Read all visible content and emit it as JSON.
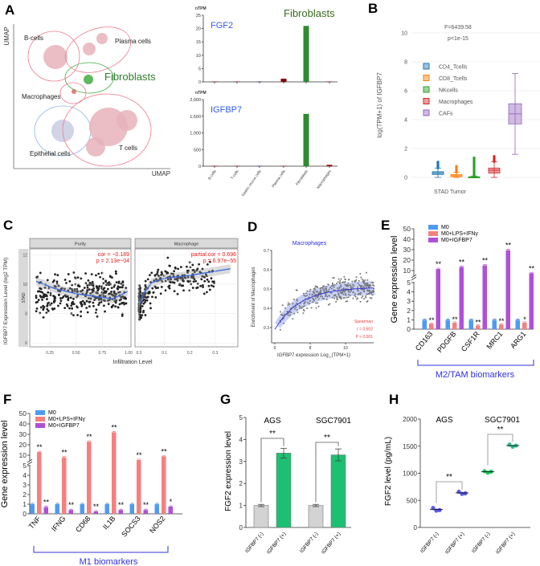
{
  "figure": {
    "panel_labels": [
      "A",
      "B",
      "C",
      "D",
      "E",
      "F",
      "G",
      "H"
    ]
  },
  "chart_data": [
    {
      "panel": "A",
      "type": "scatter",
      "xlabel": "UMAP",
      "ylabel": "UMAP",
      "clusters": [
        {
          "name": "B-cells",
          "color": "#f07a8a"
        },
        {
          "name": "Plasma cells",
          "color": "#f07a8a"
        },
        {
          "name": "Fibroblasts",
          "color": "#3fae3f"
        },
        {
          "name": "Macrophages",
          "color": "#f07a8a"
        },
        {
          "name": "Epithelial cells",
          "color": "#8ab4e8"
        },
        {
          "name": "T cells",
          "color": "#f07a8a"
        }
      ]
    },
    {
      "panel": "A",
      "type": "bar",
      "title": "FGF2",
      "unit": "nTPM",
      "annotation": "Fibroblasts",
      "categories": [
        "B-cells",
        "T-cells",
        "Gastric mucus cells",
        "Plasma cells",
        "Fibroblasts",
        "Macrophages"
      ],
      "values": [
        0,
        0,
        0,
        1.2,
        21,
        0
      ],
      "colors": [
        "#8b0000",
        "#8b0000",
        "#1a237e",
        "#8b0000",
        "#2e8b2e",
        "#8b0000"
      ],
      "ylim": [
        0,
        25
      ],
      "yticks": [
        "0",
        "5",
        "10",
        "15",
        "20",
        "25"
      ]
    },
    {
      "panel": "A",
      "type": "bar",
      "title": "IGFBP7",
      "unit": "nTPM",
      "categories": [
        "B-cells",
        "T-cells",
        "Gastric mucus cells",
        "Plasma cells",
        "Fibroblasts",
        "Macrophages"
      ],
      "values": [
        0,
        3,
        12,
        2,
        1570,
        40
      ],
      "colors": [
        "#8b0000",
        "#8b0000",
        "#1a237e",
        "#8b0000",
        "#2e8b2e",
        "#8b0000"
      ],
      "ylim": [
        0,
        2000
      ],
      "yticks": [
        "0",
        "500",
        "1,000",
        "1,500",
        "2,000"
      ]
    },
    {
      "panel": "B",
      "type": "box",
      "title_lines": [
        "F=6439.58",
        "p<1e-15"
      ],
      "xlabel": "STAD Tumor",
      "ylabel": "log(TPM+1) of IGFBP7",
      "ylim": [
        0,
        10
      ],
      "yticks": [
        "0",
        "2",
        "4",
        "6",
        "8",
        "10"
      ],
      "series": [
        {
          "name": "CD4_Tcells",
          "color": "#1f77b4",
          "min": 0,
          "q1": 0.2,
          "median": 0.3,
          "q3": 0.4,
          "max": 0.65,
          "outlier_max": 1.1
        },
        {
          "name": "CD8_Tcells",
          "color": "#ff7f0e",
          "min": 0,
          "q1": 0.05,
          "median": 0.12,
          "q3": 0.2,
          "max": 0.35,
          "outlier_max": 0.8
        },
        {
          "name": "NKcells",
          "color": "#2ca02c",
          "min": 0,
          "q1": 0,
          "median": 0.02,
          "q3": 0.05,
          "max": 0.1,
          "outlier_max": 1.4
        },
        {
          "name": "Macrophages",
          "color": "#d62728",
          "min": 0,
          "q1": 0.3,
          "median": 0.5,
          "q3": 0.65,
          "max": 1.1,
          "outlier_max": 1.5
        },
        {
          "name": "CAFs",
          "color": "#9467bd",
          "min": 1.6,
          "q1": 3.7,
          "median": 4.4,
          "q3": 5.1,
          "max": 7.2,
          "outlier_max": 7.2
        }
      ]
    },
    {
      "panel": "C",
      "type": "scatter",
      "ylabel": "IGFBP7 Expression Level (log2 TPM)",
      "xlabel": "Infiltration Level",
      "row_strip": "STAD",
      "yticks": [
        "6",
        "8",
        "10",
        "12"
      ],
      "ylim": [
        5.8,
        12.4
      ],
      "facets": [
        {
          "name": "Purity",
          "stat_lines": [
            "cor = −0.189",
            "p = 2.13e−04"
          ],
          "xticks": [
            "0.25",
            "0.50",
            "0.75",
            "1.00"
          ]
        },
        {
          "name": "Macrophage",
          "stat_lines": [
            "partial.cor = 0.696",
            "p = 6.97e−55"
          ],
          "xticks": [
            "0.0",
            "0.1",
            "0.2",
            "0.3"
          ]
        }
      ]
    },
    {
      "panel": "D",
      "type": "scatter",
      "title": "Macrophages",
      "ylabel": "Enrichment of Macrophages",
      "xlabel": "IGFBP7 expression Log",
      "xlabel_sub": "2",
      "xlabel_tail": " (TPM+1)",
      "stats": [
        "Spearman",
        "r = 0.502",
        "P < 0.001"
      ],
      "xticks": [
        "6",
        "8",
        "10"
      ],
      "yticks": [
        "0.3",
        "0.4",
        "0.5",
        "0.6",
        "0.7"
      ],
      "xlim": [
        6,
        11.7
      ],
      "ylim": [
        0.3,
        0.7
      ]
    },
    {
      "panel": "E",
      "type": "bar",
      "ylabel": "Gene expression level",
      "group_label": "M2/TAM biomarkers",
      "categories": [
        "CD163",
        "PDGFB",
        "CSF1R",
        "MRC1",
        "ARG1"
      ],
      "series": [
        {
          "name": "M0",
          "color": "#4f9bf0",
          "values": [
            1,
            1,
            1,
            1,
            1
          ]
        },
        {
          "name": "M0+LPS+IFNγ",
          "color": "#f77f7f",
          "values": [
            0.6,
            0.7,
            0.4,
            0.5,
            0.7
          ]
        },
        {
          "name": "M0+IGFBP7",
          "color": "#b04fd8",
          "values": [
            11.5,
            13.5,
            15,
            29.5,
            7.5
          ]
        }
      ],
      "sig_lps": [
        "**",
        "**",
        "**",
        "**",
        "*"
      ],
      "sig_igfbp7": [
        "**",
        "**",
        "**",
        "**",
        "**"
      ],
      "yticks_lower": [
        "0",
        "1",
        "2",
        "3",
        "4",
        "5"
      ],
      "yticks_upper": [
        "10",
        "20",
        "30",
        "40",
        "50"
      ]
    },
    {
      "panel": "F",
      "type": "bar",
      "ylabel": "Gene expression level",
      "group_label": "M1  biomarkers",
      "categories": [
        "TNF",
        "IFNG",
        "CD68",
        "IL1B",
        "SOCS3",
        "NOS2"
      ],
      "series": [
        {
          "name": "M0",
          "color": "#4f9bf0",
          "values": [
            1,
            1,
            1,
            1,
            1,
            1
          ]
        },
        {
          "name": "M0+LPS+IFNγ",
          "color": "#f77f7f",
          "values": [
            13,
            8,
            23,
            32,
            5.5,
            9
          ]
        },
        {
          "name": "M0+IGFBP7",
          "color": "#b04fd8",
          "values": [
            0.7,
            0.4,
            0.25,
            0.4,
            0.4,
            0.75
          ]
        }
      ],
      "sig_lps": [
        "**",
        "**",
        "**",
        "**",
        "**",
        "**"
      ],
      "sig_igfbp7": [
        "**",
        "**",
        "**",
        "**",
        "**",
        "*"
      ],
      "yticks_lower": [
        "0",
        "1",
        "2",
        "3",
        "4",
        "5"
      ],
      "yticks_upper": [
        "10",
        "20",
        "30",
        "40",
        "50"
      ]
    },
    {
      "panel": "G",
      "type": "bar",
      "ylabel": "FGF2 expression level",
      "groups": [
        "AGS",
        "SGC7901"
      ],
      "categories": [
        "IGFBP7 (-)",
        "IGFBP7 (+)",
        "IGFBP7 (-)",
        "IGFBP7 (+)"
      ],
      "values": [
        1,
        3.38,
        1,
        3.3
      ],
      "errors": [
        0.05,
        0.22,
        0.05,
        0.27
      ],
      "colors": [
        "#d3d3d3",
        "#1dbf73",
        "#d3d3d3",
        "#1dbf73"
      ],
      "sig": [
        "**",
        "**"
      ],
      "ylim": [
        0,
        5
      ],
      "yticks": [
        "0",
        "1",
        "2",
        "3",
        "4",
        "5"
      ]
    },
    {
      "panel": "H",
      "type": "scatter",
      "ylabel": "FGF2 level (pg/mL)",
      "groups": [
        "AGS",
        "SGC7901"
      ],
      "categories": [
        "IGFBP7 (-)",
        "IGFBP7 (+)",
        "IGFBP7 (-)",
        "IGFBP7 (+)"
      ],
      "points": [
        [
          360,
          310,
          320
        ],
        [
          660,
          620,
          630
        ],
        [
          1040,
          1010,
          1030
        ],
        [
          1530,
          1490,
          1510
        ]
      ],
      "means": [
        330,
        637,
        1027,
        1510
      ],
      "colors": [
        "#5a5af0",
        "#5a5af0",
        "#22c55e",
        "#2fbf8a"
      ],
      "sig": [
        "**",
        "**"
      ],
      "ylim": [
        0,
        2000
      ],
      "yticks": [
        "0",
        "500",
        "1000",
        "1500",
        "2000"
      ]
    }
  ]
}
